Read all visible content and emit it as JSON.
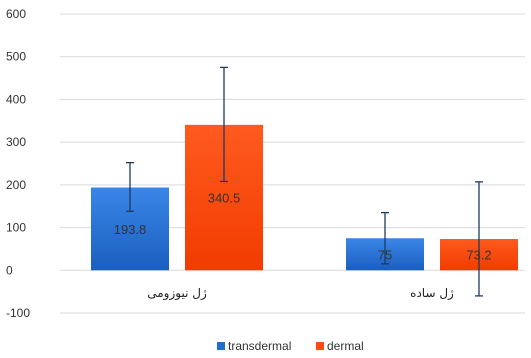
{
  "chart_data": {
    "type": "bar",
    "title": "",
    "xlabel": "",
    "ylabel": "",
    "categories": [
      "ژل نیوزومی",
      "ژل ساده"
    ],
    "ylim": [
      -100,
      600
    ],
    "yticks": [
      -100,
      0,
      100,
      200,
      300,
      400,
      500,
      600
    ],
    "grid": true,
    "legend_position": "bottom",
    "series": [
      {
        "name": "transdermal",
        "color": "#1f6fd1",
        "values": [
          193.8,
          75
        ],
        "labels": [
          "193.8",
          "75"
        ],
        "error_low": [
          138,
          15
        ],
        "error_high": [
          252,
          135
        ]
      },
      {
        "name": "dermal",
        "color": "#ff4b0f",
        "values": [
          340.5,
          73.2
        ],
        "labels": [
          "340.5",
          "73.2"
        ],
        "error_low": [
          208,
          -60
        ],
        "error_high": [
          475,
          207
        ]
      }
    ]
  }
}
